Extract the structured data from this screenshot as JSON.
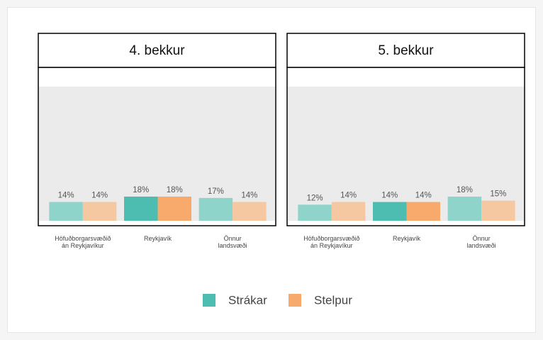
{
  "chart_data": [
    {
      "type": "bar",
      "title": "4. bekkur",
      "categories": [
        "Höfuðborgarsvæðið án Reykjavíkur",
        "Reykjavík",
        "Önnur landsvæði"
      ],
      "ylim": [
        0,
        100
      ],
      "series": [
        {
          "name": "Strákar",
          "color": "#4dbdb1",
          "colors": [
            "#8fd4ca",
            "#4dbdb1",
            "#8fd4ca"
          ],
          "values": [
            14,
            18,
            17
          ],
          "value_labels": [
            "14%",
            "18%",
            "17%"
          ]
        },
        {
          "name": "Stelpur",
          "color": "#f8aa6c",
          "colors": [
            "#f5c8a2",
            "#f8aa6c",
            "#f5c8a2"
          ],
          "values": [
            14,
            18,
            14
          ],
          "value_labels": [
            "14%",
            "18%",
            "14%"
          ]
        }
      ]
    },
    {
      "type": "bar",
      "title": "5. bekkur",
      "categories": [
        "Höfuðborgarsvæðið án Reykjavíkur",
        "Reykjavík",
        "Önnur landsvæði"
      ],
      "ylim": [
        0,
        100
      ],
      "series": [
        {
          "name": "Strákar",
          "color": "#4dbdb1",
          "colors": [
            "#8fd4ca",
            "#4dbdb1",
            "#8fd4ca"
          ],
          "values": [
            12,
            14,
            18
          ],
          "value_labels": [
            "12%",
            "14%",
            "18%"
          ]
        },
        {
          "name": "Stelpur",
          "color": "#f8aa6c",
          "colors": [
            "#f5c8a2",
            "#f8aa6c",
            "#f5c8a2"
          ],
          "values": [
            14,
            14,
            15
          ],
          "value_labels": [
            "14%",
            "14%",
            "15%"
          ]
        }
      ]
    }
  ]
}
